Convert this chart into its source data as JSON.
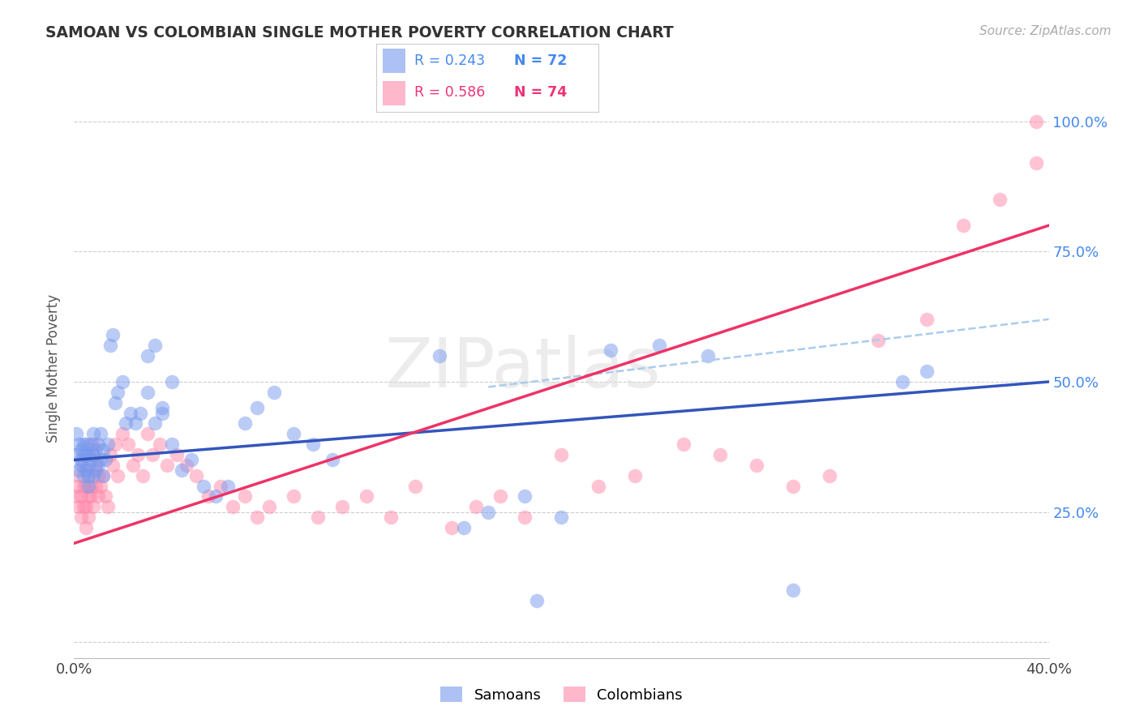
{
  "title": "SAMOAN VS COLOMBIAN SINGLE MOTHER POVERTY CORRELATION CHART",
  "source": "Source: ZipAtlas.com",
  "ylabel": "Single Mother Poverty",
  "xlim": [
    0.0,
    0.4
  ],
  "ylim": [
    -0.03,
    1.08
  ],
  "samoans_color": "#7799EE",
  "colombians_color": "#FF88AA",
  "samoans_line_color": "#3355BB",
  "colombians_line_color": "#EE3366",
  "dash_line_color": "#AACCEE",
  "samoans_R": 0.243,
  "samoans_N": 72,
  "colombians_R": 0.586,
  "colombians_N": 74,
  "watermark": "ZIPatlas",
  "samoans_x": [
    0.001,
    0.001,
    0.002,
    0.002,
    0.003,
    0.003,
    0.003,
    0.004,
    0.004,
    0.004,
    0.005,
    0.005,
    0.005,
    0.006,
    0.006,
    0.006,
    0.006,
    0.007,
    0.007,
    0.008,
    0.008,
    0.008,
    0.009,
    0.009,
    0.01,
    0.01,
    0.011,
    0.011,
    0.012,
    0.012,
    0.013,
    0.014,
    0.015,
    0.016,
    0.017,
    0.018,
    0.02,
    0.021,
    0.023,
    0.025,
    0.027,
    0.03,
    0.033,
    0.036,
    0.04,
    0.044,
    0.048,
    0.053,
    0.058,
    0.063,
    0.07,
    0.075,
    0.082,
    0.09,
    0.098,
    0.106,
    0.03,
    0.033,
    0.036,
    0.04,
    0.15,
    0.16,
    0.17,
    0.185,
    0.2,
    0.22,
    0.24,
    0.26,
    0.19,
    0.295,
    0.34,
    0.35
  ],
  "samoans_y": [
    0.36,
    0.4,
    0.33,
    0.38,
    0.34,
    0.37,
    0.35,
    0.32,
    0.36,
    0.38,
    0.33,
    0.36,
    0.38,
    0.34,
    0.3,
    0.32,
    0.36,
    0.35,
    0.38,
    0.32,
    0.36,
    0.4,
    0.33,
    0.37,
    0.34,
    0.38,
    0.35,
    0.4,
    0.32,
    0.37,
    0.35,
    0.38,
    0.57,
    0.59,
    0.46,
    0.48,
    0.5,
    0.42,
    0.44,
    0.42,
    0.44,
    0.48,
    0.42,
    0.44,
    0.38,
    0.33,
    0.35,
    0.3,
    0.28,
    0.3,
    0.42,
    0.45,
    0.48,
    0.4,
    0.38,
    0.35,
    0.55,
    0.57,
    0.45,
    0.5,
    0.55,
    0.22,
    0.25,
    0.28,
    0.24,
    0.56,
    0.57,
    0.55,
    0.08,
    0.1,
    0.5,
    0.52
  ],
  "colombians_x": [
    0.001,
    0.001,
    0.002,
    0.002,
    0.003,
    0.003,
    0.004,
    0.004,
    0.004,
    0.005,
    0.005,
    0.005,
    0.006,
    0.006,
    0.006,
    0.007,
    0.007,
    0.008,
    0.008,
    0.008,
    0.009,
    0.009,
    0.01,
    0.01,
    0.011,
    0.012,
    0.013,
    0.014,
    0.015,
    0.016,
    0.017,
    0.018,
    0.02,
    0.022,
    0.024,
    0.026,
    0.028,
    0.03,
    0.032,
    0.035,
    0.038,
    0.042,
    0.046,
    0.05,
    0.055,
    0.06,
    0.065,
    0.07,
    0.075,
    0.08,
    0.09,
    0.1,
    0.11,
    0.12,
    0.13,
    0.14,
    0.155,
    0.165,
    0.175,
    0.185,
    0.2,
    0.215,
    0.23,
    0.25,
    0.265,
    0.28,
    0.295,
    0.31,
    0.33,
    0.35,
    0.365,
    0.38,
    0.395,
    0.395
  ],
  "colombians_y": [
    0.3,
    0.28,
    0.32,
    0.26,
    0.28,
    0.24,
    0.3,
    0.26,
    0.34,
    0.22,
    0.3,
    0.26,
    0.28,
    0.24,
    0.32,
    0.28,
    0.3,
    0.26,
    0.38,
    0.36,
    0.34,
    0.3,
    0.32,
    0.28,
    0.3,
    0.32,
    0.28,
    0.26,
    0.36,
    0.34,
    0.38,
    0.32,
    0.4,
    0.38,
    0.34,
    0.36,
    0.32,
    0.4,
    0.36,
    0.38,
    0.34,
    0.36,
    0.34,
    0.32,
    0.28,
    0.3,
    0.26,
    0.28,
    0.24,
    0.26,
    0.28,
    0.24,
    0.26,
    0.28,
    0.24,
    0.3,
    0.22,
    0.26,
    0.28,
    0.24,
    0.36,
    0.3,
    0.32,
    0.38,
    0.36,
    0.34,
    0.3,
    0.32,
    0.58,
    0.62,
    0.8,
    0.85,
    0.92,
    1.0
  ]
}
